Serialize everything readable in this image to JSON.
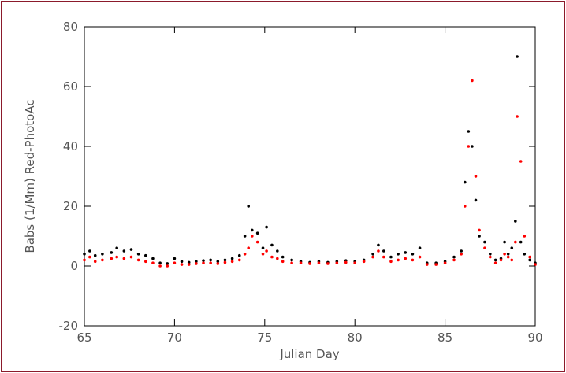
{
  "chart_data": {
    "type": "scatter",
    "title": "",
    "xlabel": "Julian Day",
    "ylabel": "Babs (1/Mm) Red-PhotoAc",
    "xlim": [
      65,
      90
    ],
    "ylim": [
      -20,
      80
    ],
    "x_ticks": [
      65,
      70,
      75,
      80,
      85,
      90
    ],
    "y_ticks": [
      -20,
      0,
      20,
      40,
      60,
      80
    ],
    "grid": false,
    "legend": "none",
    "series": [
      {
        "color": "#000000",
        "x": [
          65.0,
          65.3,
          65.6,
          66.0,
          66.5,
          66.8,
          67.2,
          67.6,
          68.0,
          68.4,
          68.8,
          69.2,
          69.6,
          70.0,
          70.4,
          70.8,
          71.2,
          71.6,
          72.0,
          72.4,
          72.8,
          73.2,
          73.6,
          73.9,
          74.1,
          74.3,
          74.6,
          74.9,
          75.1,
          75.4,
          75.7,
          76.0,
          76.5,
          77.0,
          77.5,
          78.0,
          78.5,
          79.0,
          79.5,
          80.0,
          80.5,
          81.0,
          81.3,
          81.6,
          82.0,
          82.4,
          82.8,
          83.2,
          83.6,
          84.0,
          84.5,
          85.0,
          85.5,
          85.9,
          86.1,
          86.3,
          86.5,
          86.7,
          86.9,
          87.2,
          87.5,
          87.8,
          88.1,
          88.3,
          88.5,
          88.7,
          88.9,
          89.0,
          89.2,
          89.4,
          89.7,
          90.0
        ],
        "y": [
          4,
          5,
          3.5,
          4,
          4.5,
          6,
          5,
          5.5,
          4,
          3.5,
          2.5,
          1,
          0.8,
          2.5,
          1.5,
          1.2,
          1.5,
          1.8,
          2,
          1.5,
          2,
          2.5,
          3.5,
          10,
          20,
          12,
          11,
          6,
          13,
          7,
          5,
          3,
          2,
          1.5,
          1.2,
          1.5,
          1.2,
          1.5,
          1.8,
          1.5,
          2,
          4,
          7,
          5,
          3,
          4,
          4.5,
          4,
          6,
          1,
          1,
          1.5,
          3,
          5,
          28,
          45,
          40,
          22,
          10,
          8,
          4,
          2,
          2.5,
          8,
          4,
          6,
          15,
          70,
          8,
          4,
          2,
          1
        ]
      },
      {
        "color": "#ff0000",
        "x": [
          65.0,
          65.3,
          65.6,
          66.0,
          66.5,
          66.8,
          67.2,
          67.6,
          68.0,
          68.4,
          68.8,
          69.2,
          69.6,
          70.0,
          70.4,
          70.8,
          71.2,
          71.6,
          72.0,
          72.4,
          72.8,
          73.2,
          73.6,
          73.9,
          74.1,
          74.3,
          74.6,
          74.9,
          75.1,
          75.4,
          75.7,
          76.0,
          76.5,
          77.0,
          77.5,
          78.0,
          78.5,
          79.0,
          79.5,
          80.0,
          80.5,
          81.0,
          81.3,
          81.6,
          82.0,
          82.4,
          82.8,
          83.2,
          83.6,
          84.0,
          84.5,
          85.0,
          85.5,
          85.9,
          86.1,
          86.3,
          86.5,
          86.7,
          86.9,
          87.2,
          87.5,
          87.8,
          88.1,
          88.3,
          88.5,
          88.7,
          88.9,
          89.0,
          89.2,
          89.4,
          89.7,
          90.0
        ],
        "y": [
          2,
          3,
          1.5,
          2,
          2.5,
          3,
          2.5,
          3,
          2,
          1.5,
          1,
          0,
          0,
          1,
          0.5,
          0.5,
          0.8,
          1,
          1,
          0.8,
          1.2,
          1.5,
          2,
          4,
          6,
          10,
          8,
          4,
          5,
          3,
          2.5,
          1.5,
          1,
          1,
          0.8,
          1,
          0.8,
          1,
          1.2,
          1,
          1.5,
          3,
          5,
          3,
          1.5,
          2,
          2.5,
          2,
          3,
          0.5,
          0.5,
          1,
          2,
          4,
          20,
          40,
          62,
          30,
          12,
          6,
          3,
          1,
          2,
          4,
          3,
          2,
          8,
          50,
          35,
          10,
          3,
          0.5
        ]
      }
    ]
  }
}
